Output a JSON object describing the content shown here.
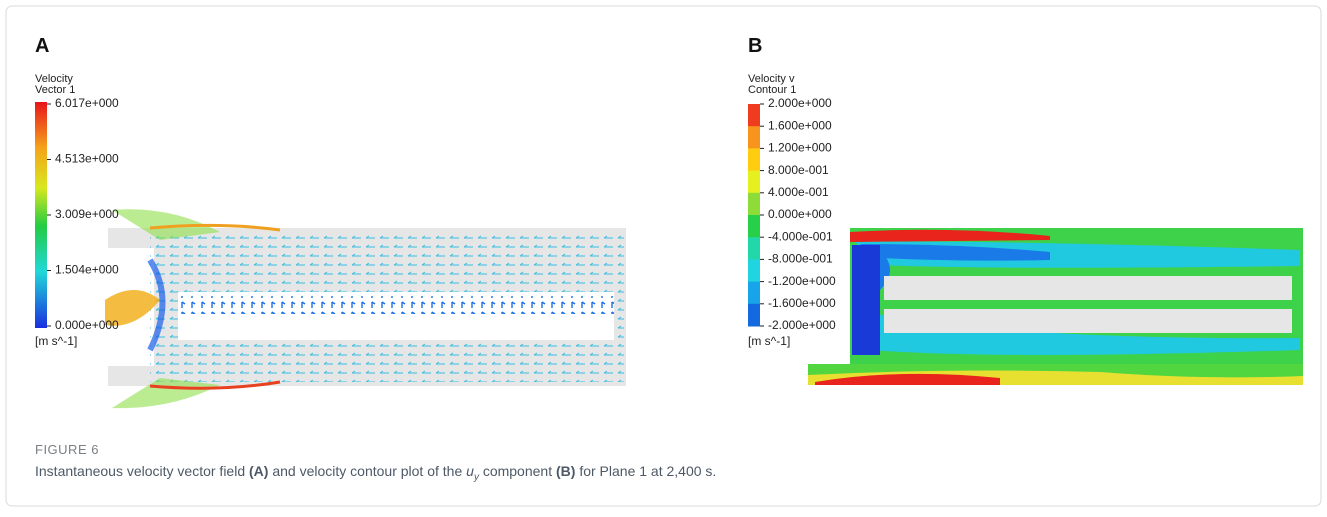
{
  "panel_a": {
    "label": "A",
    "legend_title": "Velocity",
    "legend_subtitle": "Vector 1",
    "ticks": [
      "6.017e+000",
      "4.513e+000",
      "3.009e+000",
      "1.504e+000",
      "0.000e+000"
    ],
    "unit": "[m s^-1]"
  },
  "panel_b": {
    "label": "B",
    "legend_title": "Velocity v",
    "legend_subtitle": "Contour 1",
    "ticks": [
      "2.000e+000",
      "1.600e+000",
      "1.200e+000",
      "8.000e-001",
      "4.000e-001",
      "0.000e+000",
      "-4.000e-001",
      "-8.000e-001",
      "-1.200e+000",
      "-1.600e+000",
      "-2.000e+000"
    ],
    "unit": "[m s^-1]"
  },
  "caption": {
    "heading": "FIGURE 6",
    "parts": [
      "Instantaneous velocity vector field ",
      "(A)",
      " and velocity contour plot of the ",
      "u",
      "y",
      " component ",
      "(B)",
      " for Plane 1 at 2,400 s."
    ]
  }
}
